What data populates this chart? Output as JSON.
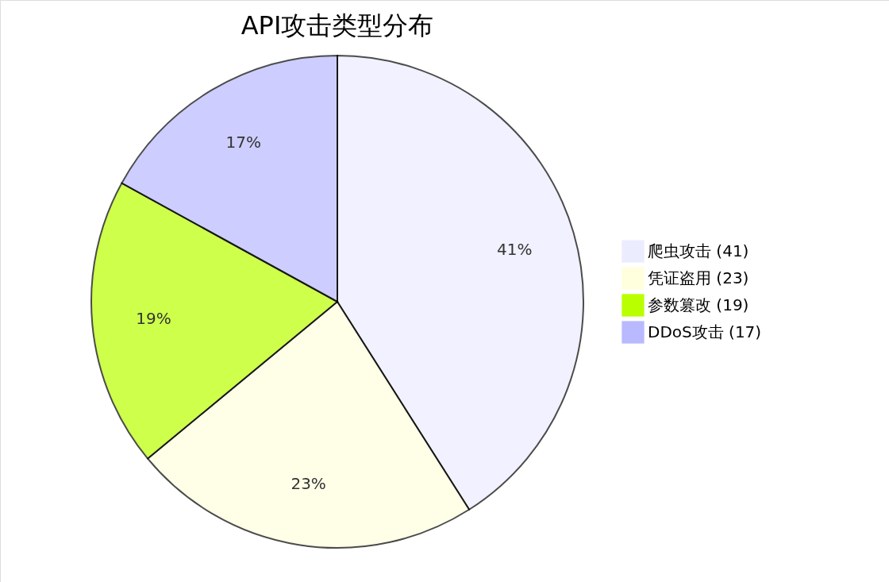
{
  "chart_data": {
    "type": "pie",
    "title": "API攻击类型分布",
    "categories": [
      "爬虫攻击 (41)",
      "凭证盗用 (23)",
      "参数篡改 (19)",
      "DDoS攻击 (17)"
    ],
    "values": [
      41,
      23,
      19,
      17
    ],
    "colors": [
      "#ececff",
      "#ffffde",
      "#b9ff00",
      "#b9b9ff"
    ],
    "value_labels": [
      "41%",
      "23%",
      "19%",
      "17%"
    ],
    "legend": "right"
  }
}
